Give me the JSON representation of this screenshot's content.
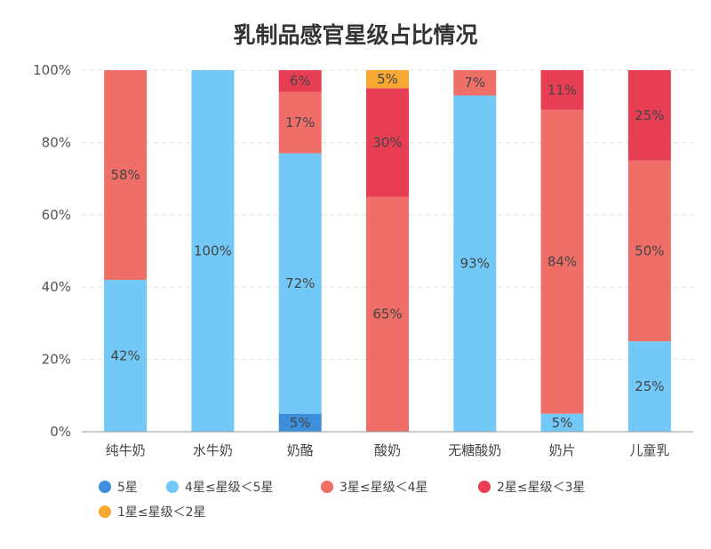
{
  "chart_data": {
    "type": "bar",
    "stacked": true,
    "title": "乳制品感官星级占比情况",
    "categories": [
      "纯牛奶",
      "水牛奶",
      "奶酪",
      "酸奶",
      "无糖酸奶",
      "奶片",
      "儿童乳"
    ],
    "ylim": [
      0,
      100
    ],
    "yticks": [
      "0%",
      "20%",
      "40%",
      "60%",
      "80%",
      "100%"
    ],
    "grid": true,
    "legend_position": "bottom",
    "series": [
      {
        "name": "5星",
        "color": "#3e8fdb",
        "values": [
          0,
          0,
          5,
          0,
          0,
          0,
          0
        ],
        "labels": [
          "",
          "",
          "5%",
          "",
          "",
          "",
          ""
        ]
      },
      {
        "name": "4星≤星级＜5星",
        "color": "#72c9f7",
        "values": [
          42,
          100,
          72,
          0,
          93,
          5,
          25
        ],
        "labels": [
          "42%",
          "100%",
          "72%",
          "",
          "93%",
          "5%",
          "25%"
        ]
      },
      {
        "name": "3星≤星级＜4星",
        "color": "#ef6f68",
        "values": [
          58,
          0,
          17,
          65,
          7,
          84,
          50
        ],
        "labels": [
          "58%",
          "",
          "17%",
          "65%",
          "7%",
          "84%",
          "50%"
        ]
      },
      {
        "name": "2星≤星级＜3星",
        "color": "#e83e54",
        "values": [
          0,
          0,
          6,
          30,
          0,
          11,
          25
        ],
        "labels": [
          "",
          "",
          "6%",
          "30%",
          "",
          "11%",
          "25%"
        ]
      },
      {
        "name": "1星≤星级＜2星",
        "color": "#f7a833",
        "values": [
          0,
          0,
          0,
          5,
          0,
          0,
          0
        ],
        "labels": [
          "",
          "",
          "",
          "5%",
          "",
          "",
          ""
        ]
      }
    ]
  }
}
